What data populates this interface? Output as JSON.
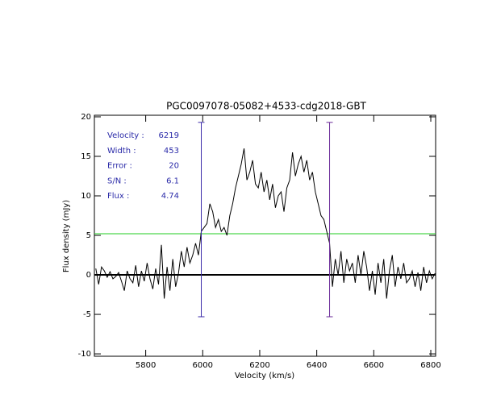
{
  "chart_data": {
    "type": "line",
    "title": "PGC0097078-05082+4533-cdg2018-GBT",
    "xlabel": "Velocity (km/s)",
    "ylabel": "Flux density (mJy)",
    "xlim": [
      5620,
      6817
    ],
    "ylim": [
      -10.3,
      20.2
    ],
    "xticks": [
      5800,
      6000,
      6200,
      6400,
      6600,
      6800
    ],
    "yticks": [
      -10,
      -5,
      0,
      5,
      10,
      15,
      20
    ],
    "x": [
      5625,
      5635,
      5645,
      5655,
      5665,
      5675,
      5685,
      5695,
      5705,
      5715,
      5725,
      5735,
      5745,
      5755,
      5765,
      5775,
      5785,
      5795,
      5805,
      5815,
      5825,
      5835,
      5845,
      5855,
      5865,
      5875,
      5885,
      5895,
      5905,
      5915,
      5925,
      5935,
      5945,
      5955,
      5965,
      5975,
      5985,
      5995,
      6005,
      6015,
      6025,
      6035,
      6045,
      6055,
      6065,
      6075,
      6085,
      6095,
      6105,
      6115,
      6125,
      6135,
      6145,
      6155,
      6165,
      6175,
      6185,
      6195,
      6205,
      6215,
      6225,
      6235,
      6245,
      6255,
      6265,
      6275,
      6285,
      6295,
      6305,
      6315,
      6325,
      6335,
      6345,
      6355,
      6365,
      6375,
      6385,
      6395,
      6405,
      6415,
      6425,
      6435,
      6445,
      6455,
      6465,
      6475,
      6485,
      6495,
      6505,
      6515,
      6525,
      6535,
      6545,
      6555,
      6565,
      6575,
      6585,
      6595,
      6605,
      6615,
      6625,
      6635,
      6645,
      6655,
      6665,
      6675,
      6685,
      6695,
      6705,
      6715,
      6725,
      6735,
      6745,
      6755,
      6765,
      6775,
      6785,
      6795,
      6805,
      6815
    ],
    "series": [
      {
        "color": "#000000",
        "values": [
          0.8,
          -1.2,
          1,
          0.5,
          -0.3,
          0.4,
          -0.5,
          -0.2,
          0.3,
          -0.8,
          -2,
          0.5,
          -0.5,
          -1,
          1.2,
          -1.5,
          0.5,
          -0.8,
          1.5,
          -0.5,
          -1.8,
          0.8,
          -1.2,
          3.8,
          -3,
          1,
          -2,
          2,
          -1.5,
          0.2,
          3,
          1,
          3.5,
          1.5,
          2.5,
          4,
          2.5,
          5.5,
          6,
          6.5,
          9,
          8,
          6,
          7,
          5.5,
          6,
          5,
          7.5,
          9,
          11,
          12.5,
          14,
          16,
          12,
          13,
          14.5,
          11.5,
          11,
          13,
          10.5,
          12,
          9.5,
          11.5,
          8.5,
          10,
          10.5,
          8,
          11,
          12,
          15.5,
          12.5,
          14,
          15,
          13,
          14.5,
          12,
          13,
          10.5,
          9,
          7.5,
          7,
          5.5,
          4,
          -1.5,
          2,
          0,
          3,
          -1,
          2,
          0.5,
          1.5,
          -1,
          2.5,
          0,
          3,
          1,
          -2,
          0.5,
          -2.5,
          1.5,
          -1,
          2,
          -3,
          0.5,
          2.5,
          -1.5,
          1,
          -0.5,
          1.5,
          -1,
          -0.5,
          0.5,
          -1.5,
          0.3,
          -2,
          1,
          -1,
          0.5,
          -0.5,
          0.2
        ]
      }
    ],
    "hlines": [
      {
        "y": 5.2,
        "color": "#22cc22"
      },
      {
        "y": 0,
        "color": "#000000"
      }
    ],
    "vlines": [
      {
        "x": 5995,
        "ymin": -5.3,
        "ymax": 19.3,
        "color": "#3a2aa8"
      },
      {
        "x": 6445,
        "ymin": -5.3,
        "ymax": 19.3,
        "color": "#6a2a98"
      }
    ],
    "annotations": [
      {
        "label": "Velocity :",
        "value": 6219
      },
      {
        "label": "Width :",
        "value": 453
      },
      {
        "label": "Error :",
        "value": 20
      },
      {
        "label": "S/N :",
        "value": 6.1
      },
      {
        "label": "Flux :",
        "value": 4.74
      }
    ]
  }
}
